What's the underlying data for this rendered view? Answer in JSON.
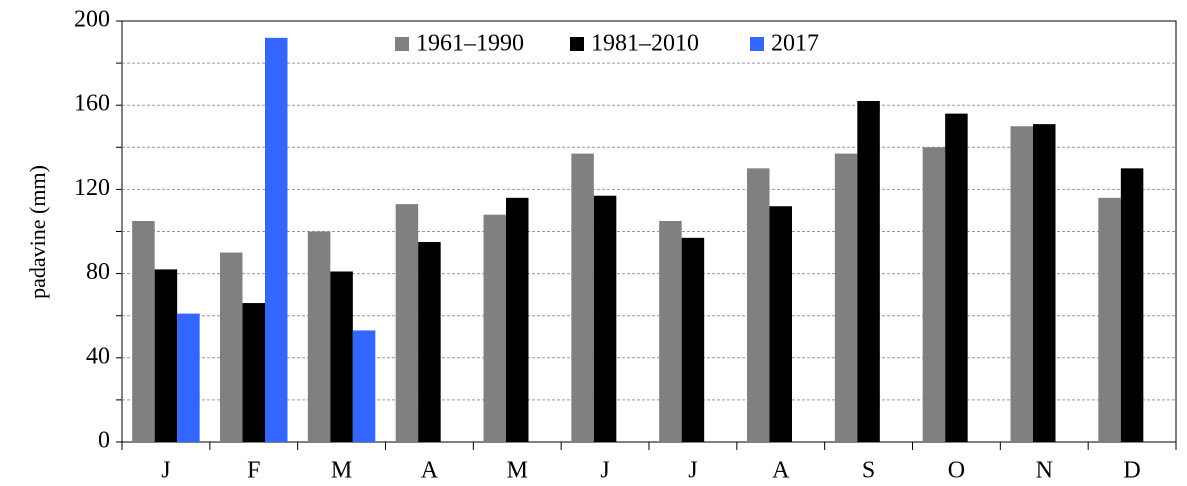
{
  "chart_data": {
    "type": "bar",
    "y_label": "padavine (mm)",
    "categories": [
      "J",
      "F",
      "M",
      "A",
      "M",
      "J",
      "J",
      "A",
      "S",
      "O",
      "N",
      "D"
    ],
    "series": [
      {
        "name": "1961–1990",
        "color": "#808080",
        "values": [
          105,
          90,
          100,
          113,
          108,
          137,
          105,
          130,
          137,
          140,
          150,
          116
        ]
      },
      {
        "name": "1981–2010",
        "color": "#000000",
        "values": [
          82,
          66,
          81,
          95,
          116,
          117,
          97,
          112,
          162,
          156,
          151,
          130
        ]
      },
      {
        "name": "2017",
        "color": "#3366ff",
        "values": [
          61,
          192,
          53,
          null,
          null,
          null,
          null,
          null,
          null,
          null,
          null,
          null
        ]
      }
    ],
    "ylim": [
      0,
      200
    ],
    "yticks": [
      0,
      40,
      80,
      120,
      160,
      200
    ],
    "minor_yticks": [
      20,
      60,
      100,
      140,
      180
    ],
    "grid": true,
    "legend": "top"
  }
}
